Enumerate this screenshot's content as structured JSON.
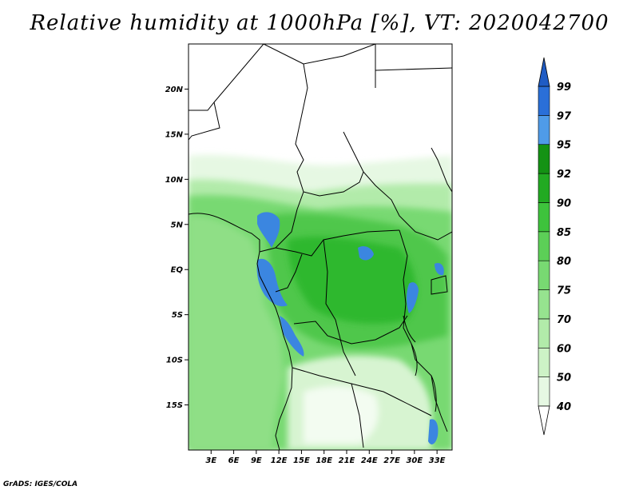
{
  "title": "Relative humidity at 1000hPa [%], VT: 2020042700",
  "credit": "GrADS: IGES/COLA",
  "map": {
    "lat_labels": [
      "20N",
      "15N",
      "10N",
      "5N",
      "EQ",
      "5S",
      "10S",
      "15S"
    ],
    "lat_values": [
      20,
      15,
      10,
      5,
      0,
      -5,
      -10,
      -15
    ],
    "lon_labels": [
      "3E",
      "6E",
      "9E",
      "12E",
      "15E",
      "18E",
      "21E",
      "24E",
      "27E",
      "30E",
      "33E"
    ],
    "lon_values": [
      3,
      6,
      9,
      12,
      15,
      18,
      21,
      24,
      27,
      30,
      33
    ],
    "lat_range": [
      -20,
      25
    ],
    "lon_range": [
      0,
      35
    ]
  },
  "colorbar": {
    "levels": [
      "40",
      "50",
      "60",
      "70",
      "75",
      "80",
      "85",
      "90",
      "92",
      "95",
      "97",
      "99"
    ],
    "colors": [
      "#ffffff",
      "#e6f8e3",
      "#cdf2c6",
      "#b2ebaa",
      "#96e38f",
      "#78d972",
      "#5ccf57",
      "#3ec33c",
      "#22aa22",
      "#149214",
      "#4f9be8",
      "#2a6fd8",
      "#1f5cc4"
    ]
  }
}
